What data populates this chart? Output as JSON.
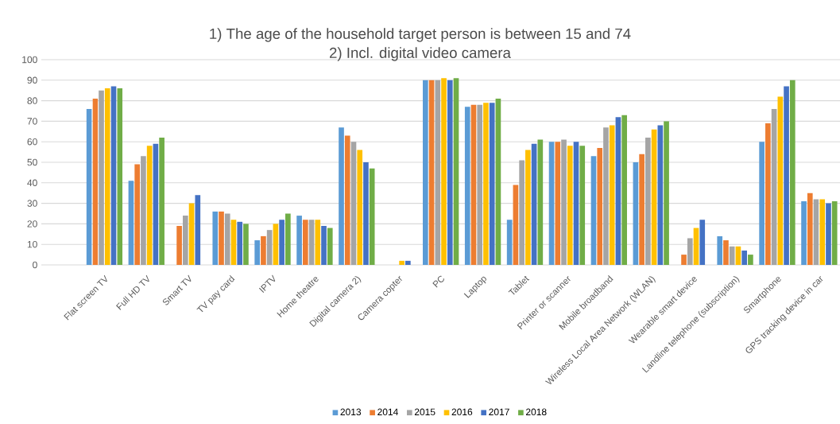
{
  "chart_data": {
    "type": "bar",
    "title": "1) The age of the household target person is between 15 and 74",
    "subtitle": "2) Incl. digital video camera",
    "categories": [
      null,
      "Flat screen TV",
      "Full HD TV",
      "Smart TV",
      "TV pay card",
      "IPTV",
      "Home theatre",
      "Digital camera 2)",
      "Camera copter",
      "PC",
      "Laptop",
      "Tablet",
      "Printer or scanner",
      "Mobile broadband",
      "Wireless Local Area Network (WLAN)",
      "Wearable smart device",
      "Landline telephone (subscription)",
      "Smartphone",
      "GPS tracking device in car"
    ],
    "series": [
      {
        "name": "2013",
        "color": "#5b9bd5",
        "values": [
          null,
          76,
          41,
          null,
          26,
          12,
          24,
          67,
          null,
          90,
          77,
          22,
          60,
          53,
          50,
          null,
          14,
          60,
          31
        ]
      },
      {
        "name": "2014",
        "color": "#ed7d31",
        "values": [
          null,
          81,
          49,
          19,
          26,
          14,
          22,
          63,
          null,
          90,
          78,
          39,
          60,
          57,
          54,
          5,
          12,
          69,
          35
        ]
      },
      {
        "name": "2015",
        "color": "#a5a5a5",
        "values": [
          null,
          85,
          53,
          24,
          25,
          17,
          22,
          60,
          null,
          90,
          78,
          51,
          61,
          67,
          62,
          13,
          9,
          76,
          32
        ]
      },
      {
        "name": "2016",
        "color": "#ffc000",
        "values": [
          null,
          86,
          58,
          30,
          22,
          20,
          22,
          56,
          2,
          91,
          79,
          56,
          58,
          68,
          66,
          18,
          9,
          82,
          32
        ]
      },
      {
        "name": "2017",
        "color": "#4472c4",
        "values": [
          null,
          87,
          59,
          34,
          21,
          22,
          19,
          50,
          2,
          90,
          79,
          59,
          60,
          72,
          68,
          22,
          7,
          87,
          30
        ]
      },
      {
        "name": "2018",
        "color": "#70ad47",
        "values": [
          null,
          86,
          62,
          null,
          20,
          25,
          18,
          47,
          null,
          91,
          81,
          61,
          58,
          73,
          70,
          null,
          5,
          90,
          31
        ]
      }
    ],
    "ylim": [
      0,
      100
    ],
    "yticks": [
      0,
      10,
      20,
      30,
      40,
      50,
      60,
      70,
      80,
      90,
      100
    ],
    "grid": "y",
    "legend": "bottom"
  }
}
